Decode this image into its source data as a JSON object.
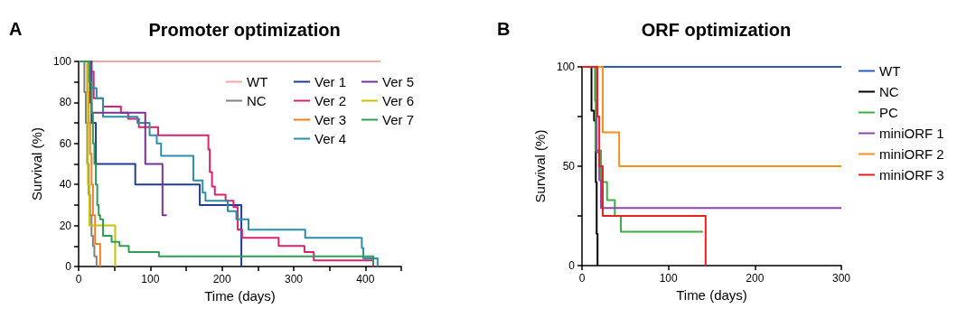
{
  "chart_data": [
    {
      "type": "step",
      "title": "Promoter optimization",
      "xlabel": "Time (days)",
      "ylabel": "Survival (%)",
      "annotations": [
        "A"
      ],
      "xlim": [
        0,
        450
      ],
      "ylim": [
        0,
        100
      ],
      "xticks": [
        0,
        {
          "value": 50,
          "label": null
        },
        100,
        {
          "value": 150,
          "label": null
        },
        200,
        {
          "value": 250,
          "label": null
        },
        300,
        {
          "value": 350,
          "label": null
        },
        400,
        {
          "value": 450,
          "label": null
        }
      ],
      "yticks": [
        0,
        {
          "value": 10,
          "label": null
        },
        20,
        {
          "value": 30,
          "label": null
        },
        40,
        {
          "value": 50,
          "label": null
        },
        60,
        {
          "value": 70,
          "label": null
        },
        80,
        {
          "value": 90,
          "label": null
        },
        100
      ],
      "grid": false,
      "legend": "top right",
      "marker": "none",
      "line_style": "solid",
      "series": [
        {
          "name": "WT",
          "color": "#f4a6a6",
          "x": [
            0,
            421
          ],
          "values": [
            100,
            100
          ]
        },
        {
          "name": "NC",
          "color": "#808080",
          "x": [
            0,
            8,
            10,
            12,
            14,
            16,
            18,
            20,
            22,
            25
          ],
          "values": [
            100,
            85,
            70,
            50,
            35,
            25,
            15,
            10,
            5,
            0
          ]
        },
        {
          "name": "Ver 1",
          "color": "#1f3d99",
          "x": [
            0,
            16,
            18,
            24,
            79,
            169,
            227
          ],
          "values": [
            100,
            80,
            70,
            50,
            40,
            30,
            0
          ]
        },
        {
          "name": "Ver 2",
          "color": "#d6246e",
          "x": [
            0,
            16,
            21,
            34,
            59,
            69,
            84,
            111,
            181,
            183,
            186,
            190,
            205,
            216,
            222,
            228,
            279,
            315,
            328,
            411
          ],
          "values": [
            100,
            95,
            82,
            78,
            75,
            72,
            68,
            64,
            57,
            46,
            39,
            35,
            32,
            29,
            18,
            14,
            10,
            7,
            3,
            0
          ]
        },
        {
          "name": "Ver 3",
          "color": "#f57d20",
          "x": [
            0,
            12,
            14,
            16,
            18,
            20,
            23,
            30
          ],
          "values": [
            100,
            85,
            70,
            55,
            40,
            25,
            11,
            0
          ]
        },
        {
          "name": "Ver 4",
          "color": "#2a8fa8",
          "x": [
            0,
            18,
            25,
            34,
            82,
            99,
            109,
            115,
            160,
            173,
            177,
            208,
            220,
            237,
            316,
            395,
            397,
            417
          ],
          "values": [
            100,
            87,
            82,
            73,
            70,
            64,
            60,
            54,
            42,
            36,
            32,
            27,
            23,
            18,
            14,
            9,
            4,
            0
          ]
        },
        {
          "name": "Ver 5",
          "color": "#7b3294",
          "x": [
            0,
            18,
            93,
            117,
            123
          ],
          "values": [
            100,
            75,
            50,
            25,
            25
          ]
        },
        {
          "name": "Ver 6",
          "color": "#c8c200",
          "x": [
            0,
            13,
            15,
            51
          ],
          "values": [
            100,
            40,
            20,
            0
          ]
        },
        {
          "name": "Ver 7",
          "color": "#2e9e57",
          "x": [
            0,
            15,
            18,
            20,
            22,
            24,
            26,
            28,
            30,
            34,
            46,
            57,
            70,
            112,
            411
          ],
          "values": [
            100,
            90,
            75,
            60,
            50,
            40,
            30,
            25,
            23,
            15,
            12,
            10,
            7,
            5,
            1
          ]
        }
      ]
    },
    {
      "type": "step",
      "title": "ORF optimization",
      "xlabel": "Time (days)",
      "ylabel": "Survival (%)",
      "annotations": [
        "B"
      ],
      "xlim": [
        0,
        300
      ],
      "ylim": [
        0,
        100
      ],
      "xticks": [
        0,
        100,
        200,
        300
      ],
      "yticks": [
        0,
        {
          "value": 25,
          "label": null
        },
        50,
        {
          "value": 75,
          "label": null
        },
        100
      ],
      "grid": false,
      "legend": "right",
      "marker": "none",
      "line_style": "solid",
      "series": [
        {
          "name": "WT",
          "color": "#2a5cbf",
          "x": [
            0,
            300
          ],
          "values": [
            100,
            100
          ]
        },
        {
          "name": "NC",
          "color": "#000000",
          "x": [
            0,
            11,
            14,
            16,
            17,
            18
          ],
          "values": [
            100,
            78,
            73,
            42,
            16,
            0
          ]
        },
        {
          "name": "PC",
          "color": "#3cb043",
          "x": [
            0,
            15,
            16,
            22,
            29,
            38,
            45,
            140
          ],
          "values": [
            100,
            83,
            58,
            42,
            33,
            25,
            17,
            17
          ]
        },
        {
          "name": "miniORF 1",
          "color": "#8e44ad",
          "x": [
            0,
            17,
            20,
            22,
            300
          ],
          "values": [
            100,
            57,
            43,
            29,
            29
          ]
        },
        {
          "name": "miniORF 2",
          "color": "#f7901e",
          "x": [
            0,
            24,
            43,
            300
          ],
          "values": [
            100,
            67,
            50,
            50
          ]
        },
        {
          "name": "miniORF 3",
          "color": "#e8201f",
          "x": [
            0,
            18,
            20,
            24,
            143
          ],
          "values": [
            100,
            75,
            50,
            25,
            0
          ]
        }
      ]
    }
  ]
}
